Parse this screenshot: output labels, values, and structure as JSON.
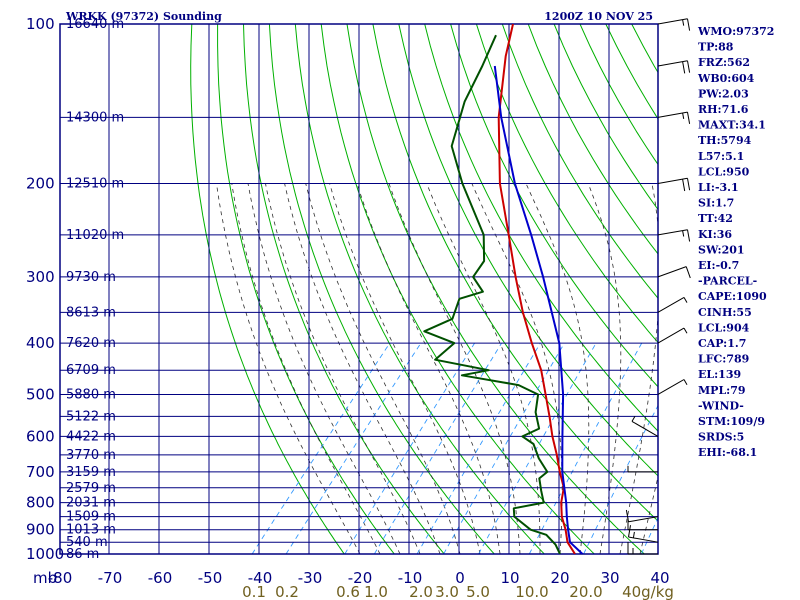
{
  "header": {
    "station": "WRKK (97372) Sounding",
    "time": "1200Z 10 NOV 25"
  },
  "indices": [
    "WMO:97372",
    "TP:88",
    "FRZ:562",
    "WB0:604",
    "PW:2.03",
    "RH:71.6",
    "MAXT:34.1",
    "TH:5794",
    "L57:5.1",
    "LCL:950",
    "LI:-3.1",
    "SI:1.7",
    "TT:42",
    "KI:36",
    "SW:201",
    "EI:-0.7",
    "-PARCEL-",
    "CAPE:1090",
    "CINH:55",
    "LCL:904",
    "CAP:1.7",
    "LFC:789",
    "EL:139",
    "MPL:79",
    "-WIND-",
    "STM:109/9",
    "SRDS:5",
    "EHI:-68.1"
  ],
  "colors": {
    "frame": "#000080",
    "dry_adiabat": "#00b000",
    "moist_adiabat": "#303030",
    "mixing_ratio": "#3399ff",
    "temperature": "#cc0000",
    "dewpoint": "#005000",
    "parcel": "#0000cc",
    "wind": "#000000"
  },
  "chart_data": {
    "type": "line",
    "chart_kind": "skew-T log-P sounding",
    "x_unit_label": "mb",
    "y_scale": "log",
    "ylim": [
      1000,
      100
    ],
    "xlim": [
      -80,
      40
    ],
    "pressure_levels": [
      100,
      200,
      300,
      400,
      500,
      600,
      700,
      800,
      900,
      1000
    ],
    "pressure_gridlines": [
      100,
      150,
      200,
      250,
      300,
      350,
      400,
      450,
      500,
      550,
      600,
      650,
      700,
      750,
      800,
      850,
      900,
      950,
      1000
    ],
    "temperature_ticks": [
      -80,
      -70,
      -60,
      -50,
      -40,
      -30,
      -20,
      -10,
      0,
      10,
      20,
      30,
      40
    ],
    "mixing_ratio_labels": [
      "0.1",
      "0.2",
      "0.6",
      "1.0",
      "2.0",
      "3.0",
      "5.0",
      "10.0",
      "20.0",
      "40g/kg"
    ],
    "height_labels": [
      {
        "p": 100,
        "text": "16640 m"
      },
      {
        "p": 150,
        "text": "14300 m"
      },
      {
        "p": 200,
        "text": "12510 m"
      },
      {
        "p": 250,
        "text": "11020 m"
      },
      {
        "p": 300,
        "text": "9730 m"
      },
      {
        "p": 350,
        "text": "8613 m"
      },
      {
        "p": 400,
        "text": "7620 m"
      },
      {
        "p": 450,
        "text": "6709 m"
      },
      {
        "p": 500,
        "text": "5880 m"
      },
      {
        "p": 550,
        "text": "5122 m"
      },
      {
        "p": 600,
        "text": "4422 m"
      },
      {
        "p": 650,
        "text": "3770 m"
      },
      {
        "p": 700,
        "text": "3159 m"
      },
      {
        "p": 750,
        "text": "2579 m"
      },
      {
        "p": 800,
        "text": "2031 m"
      },
      {
        "p": 850,
        "text": "1509 m"
      },
      {
        "p": 900,
        "text": "1013 m"
      },
      {
        "p": 950,
        "text": "540 m"
      },
      {
        "p": 1000,
        "text": "86 m"
      }
    ],
    "series": [
      {
        "key": "temperature",
        "points": [
          [
            1000,
            23.0
          ],
          [
            950,
            19.5
          ],
          [
            900,
            17.0
          ],
          [
            850,
            14.0
          ],
          [
            800,
            11.5
          ],
          [
            750,
            9.5
          ],
          [
            700,
            6.0
          ],
          [
            650,
            2.5
          ],
          [
            600,
            -1.5
          ],
          [
            550,
            -5.5
          ],
          [
            500,
            -10.0
          ],
          [
            450,
            -15.0
          ],
          [
            400,
            -21.5
          ],
          [
            350,
            -28.5
          ],
          [
            300,
            -36.0
          ],
          [
            250,
            -44.5
          ],
          [
            200,
            -55.0
          ],
          [
            150,
            -66.5
          ],
          [
            115,
            -75.5
          ],
          [
            100,
            -79.5
          ]
        ]
      },
      {
        "key": "dewpoint",
        "points": [
          [
            1000,
            20.0
          ],
          [
            960,
            17.5
          ],
          [
            920,
            14.0
          ],
          [
            900,
            10.0
          ],
          [
            850,
            4.5
          ],
          [
            820,
            3.0
          ],
          [
            800,
            8.0
          ],
          [
            760,
            5.5
          ],
          [
            720,
            3.0
          ],
          [
            700,
            3.5
          ],
          [
            660,
            -0.5
          ],
          [
            620,
            -4.0
          ],
          [
            600,
            -7.5
          ],
          [
            580,
            -5.5
          ],
          [
            540,
            -9.0
          ],
          [
            500,
            -11.5
          ],
          [
            480,
            -17.0
          ],
          [
            460,
            -30.0
          ],
          [
            450,
            -25.5
          ],
          [
            430,
            -38.0
          ],
          [
            400,
            -37.0
          ],
          [
            380,
            -45.0
          ],
          [
            360,
            -41.5
          ],
          [
            330,
            -43.5
          ],
          [
            320,
            -40.0
          ],
          [
            300,
            -44.5
          ],
          [
            280,
            -45.0
          ],
          [
            250,
            -49.5
          ],
          [
            200,
            -62.5
          ],
          [
            170,
            -71.0
          ],
          [
            140,
            -76.0
          ],
          [
            120,
            -78.5
          ],
          [
            105,
            -81.0
          ]
        ]
      },
      {
        "key": "parcel",
        "points": [
          [
            1000,
            24.5
          ],
          [
            950,
            20.0
          ],
          [
            900,
            17.5
          ],
          [
            850,
            15.0
          ],
          [
            800,
            12.5
          ],
          [
            700,
            6.5
          ],
          [
            600,
            0.5
          ],
          [
            500,
            -6.5
          ],
          [
            400,
            -16.0
          ],
          [
            300,
            -30.5
          ],
          [
            250,
            -40.0
          ],
          [
            200,
            -52.0
          ],
          [
            150,
            -66.0
          ],
          [
            120,
            -76.0
          ]
        ]
      }
    ],
    "wind_barbs": [
      {
        "p": 1000,
        "dir": 270,
        "spd": 15
      },
      {
        "p": 950,
        "dir": 280,
        "spd": 15
      },
      {
        "p": 900,
        "dir": 270,
        "spd": 10
      },
      {
        "p": 850,
        "dir": 260,
        "spd": 10
      },
      {
        "p": 700,
        "dir": 270,
        "spd": 5
      },
      {
        "p": 600,
        "dir": 300,
        "spd": 5
      },
      {
        "p": 500,
        "dir": 60,
        "spd": 5
      },
      {
        "p": 400,
        "dir": 60,
        "spd": 5
      },
      {
        "p": 350,
        "dir": 60,
        "spd": 5
      },
      {
        "p": 300,
        "dir": 70,
        "spd": 10
      },
      {
        "p": 250,
        "dir": 80,
        "spd": 15
      },
      {
        "p": 200,
        "dir": 80,
        "spd": 20
      },
      {
        "p": 150,
        "dir": 80,
        "spd": 15
      },
      {
        "p": 120,
        "dir": 80,
        "spd": 20
      },
      {
        "p": 100,
        "dir": 80,
        "spd": 15
      }
    ],
    "grid": true,
    "legend": "none"
  }
}
